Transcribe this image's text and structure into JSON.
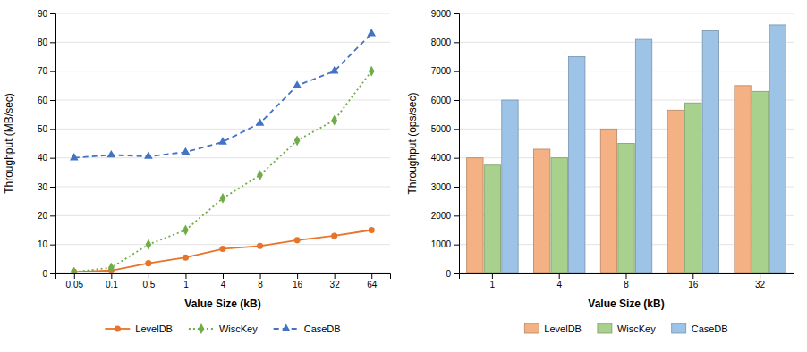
{
  "chart_data": [
    {
      "type": "line",
      "categories": [
        "0.05",
        "0.1",
        "0.5",
        "1",
        "4",
        "8",
        "16",
        "32",
        "64"
      ],
      "series": [
        {
          "name": "LevelDB",
          "color": "#E8732A",
          "marker": "circle",
          "line_style": "solid",
          "values": [
            0.5,
            1.0,
            3.5,
            5.5,
            8.5,
            9.5,
            11.5,
            13.0,
            15.0
          ]
        },
        {
          "name": "WiscKey",
          "color": "#70AD47",
          "marker": "diamond",
          "line_style": "dotted",
          "values": [
            0.5,
            2.0,
            10.0,
            15.0,
            26.0,
            34.0,
            46.0,
            53.0,
            70.0
          ]
        },
        {
          "name": "CaseDB",
          "color": "#4472C4",
          "marker": "triangle",
          "line_style": "dashed",
          "values": [
            40.0,
            41.0,
            40.5,
            42.0,
            45.5,
            52.0,
            65.0,
            70.0,
            83.0
          ]
        }
      ],
      "xlabel": "Value Size (kB)",
      "ylabel": "Throughput (MB/sec)",
      "ylim": [
        0,
        90
      ],
      "yticks": [
        0,
        10,
        20,
        30,
        40,
        50,
        60,
        70,
        80,
        90
      ],
      "grid": true,
      "legend": "bottom"
    },
    {
      "type": "bar",
      "categories": [
        "1",
        "4",
        "8",
        "16",
        "32"
      ],
      "series": [
        {
          "name": "LevelDB",
          "color": "#F4B183",
          "values": [
            4000,
            4300,
            5000,
            5650,
            6500
          ]
        },
        {
          "name": "WiscKey",
          "color": "#A9D18E",
          "values": [
            3750,
            4000,
            4500,
            5900,
            6300
          ]
        },
        {
          "name": "CaseDB",
          "color": "#9DC3E6",
          "values": [
            6000,
            7500,
            8100,
            8400,
            8600
          ]
        }
      ],
      "xlabel": "Value Size (kB)",
      "ylabel": "Throughput (ops/sec)",
      "ylim": [
        0,
        9000
      ],
      "yticks": [
        0,
        1000,
        2000,
        3000,
        4000,
        5000,
        6000,
        7000,
        8000,
        9000
      ],
      "grid": true,
      "legend": "bottom"
    }
  ]
}
